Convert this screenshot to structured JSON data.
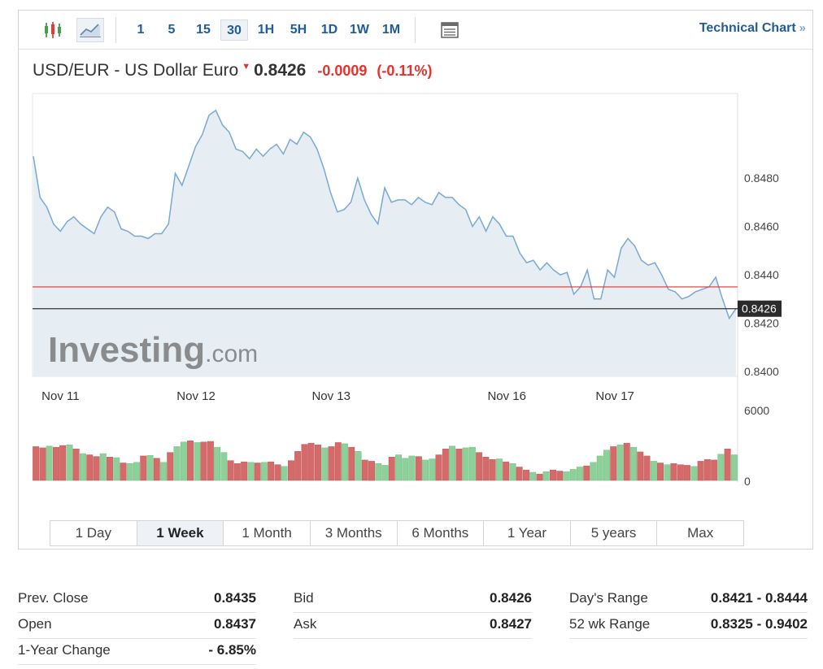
{
  "toolbar": {
    "intervals": [
      "1",
      "5",
      "15",
      "30",
      "1H",
      "5H",
      "1D",
      "1W",
      "1M"
    ],
    "active_interval": "30",
    "technical_chart_label": "Technical Chart",
    "technical_chart_chevron": "»"
  },
  "instrument": {
    "name": "USD/EUR - US Dollar Euro",
    "price": "0.8426",
    "change": "-0.0009",
    "change_pct": "(-0.11%)",
    "direction": "down"
  },
  "colors": {
    "accent_blue": "#1f5c99",
    "down_red": "#e0342f",
    "line_blue": "#7aa8d2",
    "area_fill": "#e6eef4",
    "volume_red": "#d46a6a",
    "volume_green": "#8dd09a",
    "prev_close_line": "#e0342f",
    "current_price_line": "#333333"
  },
  "chart_data": {
    "type": "line",
    "watermark": "Investing.com",
    "x_tick_labels": [
      "Nov 11",
      "Nov 12",
      "Nov 13",
      "Nov 16",
      "Nov 17"
    ],
    "y_tick_labels": [
      "0.8480",
      "0.8460",
      "0.8440",
      "0.8420",
      "0.8400"
    ],
    "y_ticks": [
      0.848,
      0.846,
      0.844,
      0.842,
      0.84
    ],
    "ylim": [
      0.8398,
      0.8515
    ],
    "prev_close_value": 0.8435,
    "current_price_value": 0.8426,
    "current_price_label": "0.8426",
    "price_series": [
      0.8489,
      0.8472,
      0.8468,
      0.8461,
      0.8458,
      0.8462,
      0.8464,
      0.8461,
      0.8459,
      0.8457,
      0.8464,
      0.8468,
      0.8466,
      0.8459,
      0.8458,
      0.8456,
      0.8456,
      0.8455,
      0.8457,
      0.8457,
      0.8461,
      0.8482,
      0.8477,
      0.8485,
      0.8493,
      0.8498,
      0.8506,
      0.8508,
      0.8502,
      0.8499,
      0.8492,
      0.8491,
      0.8488,
      0.8492,
      0.8489,
      0.8492,
      0.8494,
      0.849,
      0.8496,
      0.8494,
      0.8499,
      0.8497,
      0.8492,
      0.8484,
      0.8474,
      0.8466,
      0.8467,
      0.847,
      0.848,
      0.8471,
      0.8465,
      0.8461,
      0.8476,
      0.847,
      0.8471,
      0.8471,
      0.8469,
      0.8472,
      0.847,
      0.8469,
      0.8474,
      0.8472,
      0.8472,
      0.8469,
      0.8467,
      0.846,
      0.8464,
      0.8458,
      0.8464,
      0.8461,
      0.8456,
      0.8456,
      0.8449,
      0.8445,
      0.8446,
      0.8442,
      0.8445,
      0.8442,
      0.844,
      0.8441,
      0.8432,
      0.8435,
      0.8442,
      0.843,
      0.843,
      0.8442,
      0.8439,
      0.8451,
      0.8455,
      0.8452,
      0.8446,
      0.8444,
      0.8445,
      0.844,
      0.8434,
      0.8433,
      0.843,
      0.8431,
      0.8433,
      0.8434,
      0.8435,
      0.8439,
      0.843,
      0.8422,
      0.8426
    ],
    "volume_ylim": [
      0,
      6000
    ],
    "volume_tick_labels": [
      "6000",
      "0"
    ],
    "volume_series": [
      2900,
      2800,
      2950,
      2850,
      3000,
      3050,
      2700,
      2300,
      2200,
      2050,
      2300,
      2000,
      1950,
      1500,
      1450,
      1550,
      2100,
      2150,
      1900,
      1550,
      2400,
      2900,
      3300,
      3400,
      3250,
      3300,
      3350,
      2850,
      2400,
      1700,
      1450,
      1600,
      1550,
      1500,
      1550,
      1600,
      1350,
      1200,
      1700,
      2500,
      3100,
      3200,
      3050,
      2800,
      2900,
      3250,
      3150,
      2850,
      2500,
      1750,
      1650,
      1450,
      1300,
      2000,
      2200,
      1900,
      2100,
      2050,
      1750,
      1850,
      2200,
      2700,
      2950,
      2700,
      2800,
      2850,
      2400,
      2000,
      1800,
      1850,
      1600,
      1450,
      1150,
      900,
      700,
      550,
      750,
      900,
      800,
      750,
      950,
      1150,
      1250,
      1550,
      2100,
      2600,
      2900,
      3050,
      3200,
      2850,
      2450,
      2100,
      1650,
      1500,
      1350,
      1450,
      1350,
      1300,
      1200,
      1650,
      1800,
      1750,
      2250,
      2700,
      2200
    ],
    "volume_colors": [
      "r",
      "r",
      "g",
      "r",
      "r",
      "g",
      "r",
      "g",
      "r",
      "r",
      "g",
      "r",
      "g",
      "r",
      "g",
      "g",
      "r",
      "g",
      "r",
      "g",
      "r",
      "g",
      "g",
      "r",
      "g",
      "r",
      "r",
      "g",
      "g",
      "r",
      "r",
      "r",
      "g",
      "r",
      "g",
      "r",
      "r",
      "g",
      "r",
      "r",
      "r",
      "r",
      "r",
      "g",
      "r",
      "r",
      "g",
      "r",
      "g",
      "r",
      "r",
      "g",
      "g",
      "r",
      "g",
      "g",
      "g",
      "r",
      "g",
      "g",
      "r",
      "r",
      "g",
      "r",
      "g",
      "g",
      "r",
      "r",
      "r",
      "g",
      "r",
      "g",
      "r",
      "r",
      "g",
      "r",
      "g",
      "r",
      "r",
      "g",
      "g",
      "g",
      "r",
      "g",
      "g",
      "g",
      "r",
      "g",
      "r",
      "g",
      "r",
      "r",
      "g",
      "r",
      "g",
      "r",
      "r",
      "r",
      "g",
      "r",
      "r",
      "r",
      "g",
      "r",
      "g"
    ]
  },
  "range_tabs": [
    "1 Day",
    "1 Week",
    "1 Month",
    "3 Months",
    "6 Months",
    "1 Year",
    "5 years",
    "Max"
  ],
  "active_range": "1 Week",
  "stats": {
    "col1": [
      {
        "label": "Prev. Close",
        "value": "0.8435"
      },
      {
        "label": "Open",
        "value": "0.8437"
      },
      {
        "label": "1-Year Change",
        "value": "- 6.85%"
      }
    ],
    "col2": [
      {
        "label": "Bid",
        "value": "0.8426"
      },
      {
        "label": "Ask",
        "value": "0.8427"
      }
    ],
    "col3": [
      {
        "label": "Day's Range",
        "value": "0.8421 - 0.8444"
      },
      {
        "label": "52 wk Range",
        "value": "0.8325 - 0.9402"
      }
    ]
  }
}
